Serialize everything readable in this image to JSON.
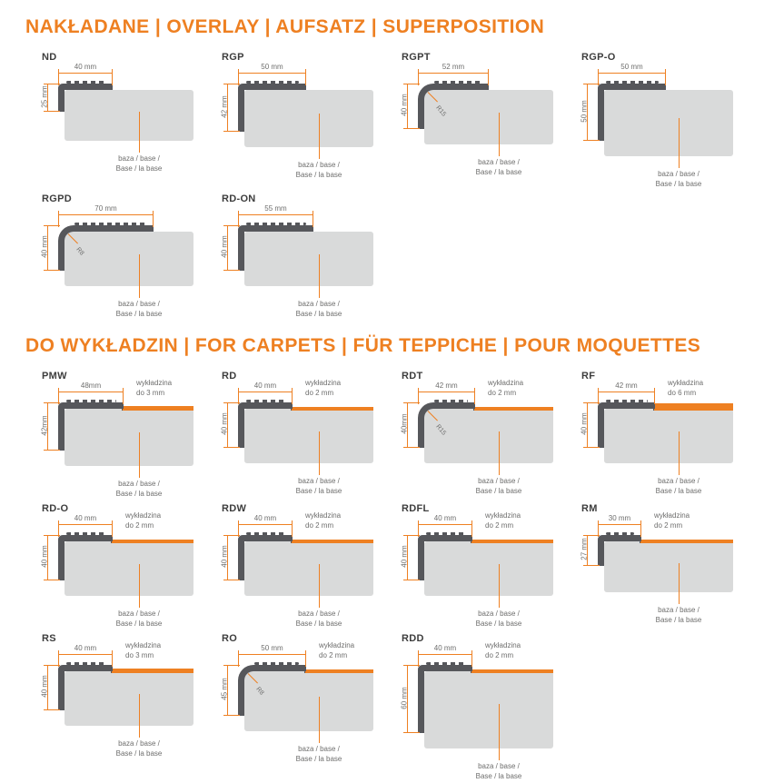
{
  "colors": {
    "accent": "#ee8022",
    "profile_dark": "#56575b",
    "base_gray": "#d9dada",
    "title_text": "#3d3d3d",
    "dim_text": "#6e6e6d"
  },
  "base_label": [
    "baza / base /",
    "Base / la base"
  ],
  "sections": [
    {
      "title": "NAKŁADANE | OVERLAY | AUFSATZ | SUPERPOSITION",
      "profiles": [
        {
          "name": "ND",
          "width_label": "40 mm",
          "height_label": "25 mm",
          "width_mm": 40,
          "height_mm": 25
        },
        {
          "name": "RGP",
          "width_label": "50 mm",
          "height_label": "42 mm",
          "width_mm": 50,
          "height_mm": 42
        },
        {
          "name": "RGPT",
          "width_label": "52 mm",
          "height_label": "40 mm",
          "width_mm": 52,
          "height_mm": 40,
          "radius_label": "R15",
          "rounded": true
        },
        {
          "name": "RGP-O",
          "width_label": "50 mm",
          "height_label": "50 mm",
          "width_mm": 50,
          "height_mm": 50
        },
        {
          "name": "RGPD",
          "width_label": "70 mm",
          "height_label": "40 mm",
          "width_mm": 70,
          "height_mm": 40,
          "radius_label": "R8",
          "rounded": true
        },
        {
          "name": "RD-ON",
          "width_label": "55 mm",
          "height_label": "40 mm",
          "width_mm": 55,
          "height_mm": 40
        }
      ]
    },
    {
      "title": "DO WYKŁADZIN | FOR CARPETS | FÜR TEPPICHE | POUR MOQUETTES",
      "profiles": [
        {
          "name": "PMW",
          "width_label": "48mm",
          "height_label": "42mm",
          "width_mm": 48,
          "height_mm": 42,
          "carpet_label": [
            "wykładzina",
            "do 3 mm"
          ],
          "carpet_mm": 3
        },
        {
          "name": "RD",
          "width_label": "40 mm",
          "height_label": "40 mm",
          "width_mm": 40,
          "height_mm": 40,
          "carpet_label": [
            "wykładzina",
            "do 2 mm"
          ],
          "carpet_mm": 2
        },
        {
          "name": "RDT",
          "width_label": "42 mm",
          "height_label": "40mm",
          "width_mm": 42,
          "height_mm": 40,
          "carpet_label": [
            "wykładzina",
            "do 2 mm"
          ],
          "carpet_mm": 2,
          "radius_label": "R15",
          "rounded": true
        },
        {
          "name": "RF",
          "width_label": "42 mm",
          "height_label": "40 mm",
          "width_mm": 42,
          "height_mm": 40,
          "carpet_label": [
            "wykładzina",
            "do 6 mm"
          ],
          "carpet_mm": 6
        },
        {
          "name": "RD-O",
          "width_label": "40 mm",
          "height_label": "40 mm",
          "width_mm": 40,
          "height_mm": 40,
          "carpet_label": [
            "wykładzina",
            "do 2 mm"
          ],
          "carpet_mm": 2
        },
        {
          "name": "RDW",
          "width_label": "40 mm",
          "height_label": "40 mm",
          "width_mm": 40,
          "height_mm": 40,
          "carpet_label": [
            "wykładzina",
            "do 2 mm"
          ],
          "carpet_mm": 2
        },
        {
          "name": "RDFL",
          "width_label": "40 mm",
          "height_label": "40 mm",
          "width_mm": 40,
          "height_mm": 40,
          "carpet_label": [
            "wykładzina",
            "do 2 mm"
          ],
          "carpet_mm": 2
        },
        {
          "name": "RM",
          "width_label": "30 mm",
          "height_label": "27 mm",
          "width_mm": 30,
          "height_mm": 27,
          "carpet_label": [
            "wykładzina",
            "do 2 mm"
          ],
          "carpet_mm": 2
        },
        {
          "name": "RS",
          "width_label": "40 mm",
          "height_label": "40 mm",
          "width_mm": 40,
          "height_mm": 40,
          "carpet_label": [
            "wykładzina",
            "do 3 mm"
          ],
          "carpet_mm": 3
        },
        {
          "name": "RO",
          "width_label": "50 mm",
          "height_label": "45 mm",
          "width_mm": 50,
          "height_mm": 45,
          "carpet_label": [
            "wykładzina",
            "do 2 mm"
          ],
          "carpet_mm": 2,
          "radius_label": "R8",
          "rounded": true
        },
        {
          "name": "RDD",
          "width_label": "40 mm",
          "height_label": "60 mm",
          "width_mm": 40,
          "height_mm": 60,
          "carpet_label": [
            "wykładzina",
            "do 2 mm"
          ],
          "carpet_mm": 2
        }
      ]
    }
  ]
}
